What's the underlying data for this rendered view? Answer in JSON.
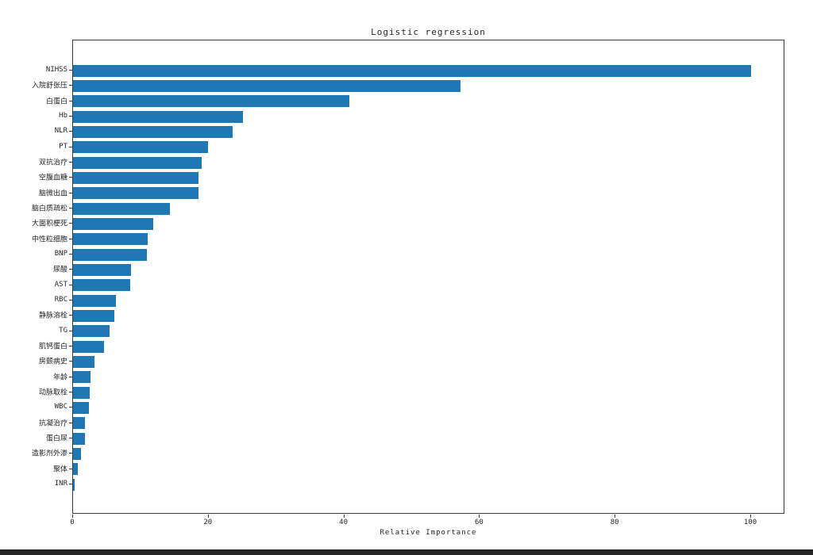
{
  "figure": {
    "title": "Logistic regression",
    "xlabel": "Relative Importance"
  },
  "chart_data": {
    "type": "bar",
    "orientation": "horizontal",
    "title": "Logistic regression",
    "xlabel": "Relative Importance",
    "ylabel": "",
    "bar_color": "#1f77b4",
    "spine_color": "#3a3a3a",
    "xlim": [
      0,
      105
    ],
    "x_ticks": [
      0,
      20,
      40,
      60,
      80,
      100
    ],
    "grid": false,
    "legend": false,
    "categories": [
      "NIHSS",
      "入院舒张压",
      "白蛋白",
      "Hb",
      "NLR",
      "PT",
      "双抗治疗",
      "空腹血糖",
      "脑微出血",
      "脑白质疏松",
      "大面积梗死",
      "中性粒细胞",
      "BNP",
      "尿酸",
      "AST",
      "RBC",
      "静脉溶栓",
      "TG",
      "肌钙蛋白",
      "房颤病史",
      "年龄",
      "动脉取栓",
      "WBC",
      "抗凝治疗",
      "蛋白尿",
      "造影剂外渗",
      "聚体",
      "INR"
    ],
    "values": [
      100,
      57.2,
      40.8,
      25.0,
      23.5,
      19.9,
      19.0,
      18.5,
      18.5,
      14.3,
      11.8,
      11.0,
      10.9,
      8.5,
      8.4,
      6.3,
      6.1,
      5.4,
      4.6,
      3.2,
      2.6,
      2.5,
      2.4,
      1.8,
      1.8,
      1.2,
      0.7,
      0.2
    ]
  }
}
